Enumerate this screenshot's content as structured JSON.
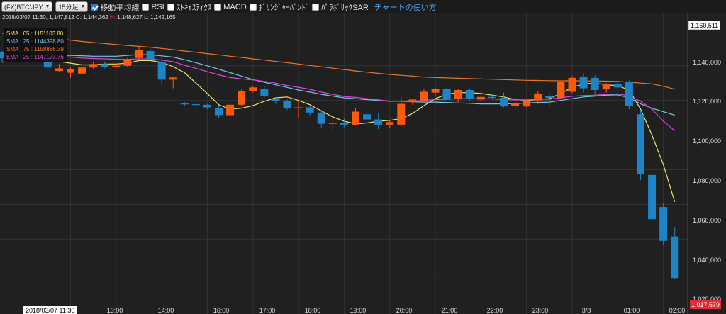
{
  "toolbar": {
    "symbol": "(FX)BTC/JPY",
    "interval": "15分足",
    "checks": [
      {
        "label": "移動平均線",
        "checked": true
      },
      {
        "label": "RSI",
        "checked": false
      },
      {
        "label": "ｽﾄｷｬｽﾃｨｸｽ",
        "checked": false
      },
      {
        "label": "MACD",
        "checked": false
      },
      {
        "label": "ﾎﾞﾘﾝｼﾞｬｰﾊﾞﾝﾄﾞ",
        "checked": false
      },
      {
        "label": "ﾊﾟﾗﾎﾞﾘｯｸSAR",
        "checked": false
      }
    ],
    "help_link": "チャートの使い方"
  },
  "info": {
    "datetime": "2018/03/07 11:30",
    "close_label": "C:",
    "close": "1,144,362",
    "high_label": "H:",
    "high": "1,148,627",
    "low_label": "L:",
    "low": "1,142,165",
    "first": "1,147,812"
  },
  "legend": [
    {
      "name": "SMA : 05",
      "value": "1151103.80",
      "color": "#f0e46a"
    },
    {
      "name": "SMA : 25",
      "value": "1144398.80",
      "color": "#6ec6e8"
    },
    {
      "name": "SMA : 75",
      "value": "1158886.39",
      "color": "#e8742c"
    },
    {
      "name": "EMA : 25",
      "value": "1147173.76",
      "color": "#dd44dd"
    }
  ],
  "colors": {
    "up": "#ff5a0a",
    "down": "#1e84c8",
    "background": "#202020",
    "grid": "#333333"
  },
  "price_marker": "1,160,511",
  "last_price": "1,017,579",
  "time_marker": "2018/03/07 11:30",
  "x_labels": [
    "13:00",
    "14:00",
    "16:00",
    "17:00",
    "18:00",
    "19:00",
    "20:00",
    "21:00",
    "22:00",
    "23:00",
    "3/8",
    "01:00",
    "02:00"
  ],
  "chart_data": {
    "type": "candlestick",
    "y_ticks": [
      1140000,
      1120000,
      1100000,
      1080000,
      1060000,
      1040000,
      1020000
    ],
    "y_tick_labels": [
      "1,140,000",
      "1,120,000",
      "1,100,000",
      "1,080,000",
      "1,060,000",
      "1,040,000",
      "1,020,000"
    ],
    "ylim": [
      1015000,
      1163000
    ],
    "x_ticks": [
      {
        "label": "13:00",
        "index": 6
      },
      {
        "label": "14:00",
        "index": 10
      },
      {
        "label": "16:00",
        "index": 18
      },
      {
        "label": "17:00",
        "index": 22
      },
      {
        "label": "18:00",
        "index": 26
      },
      {
        "label": "19:00",
        "index": 30
      },
      {
        "label": "20:00",
        "index": 34
      },
      {
        "label": "21:00",
        "index": 38
      },
      {
        "label": "22:00",
        "index": 42
      },
      {
        "label": "23:00",
        "index": 46
      },
      {
        "label": "3/8",
        "index": 50
      },
      {
        "label": "01:00",
        "index": 54
      },
      {
        "label": "02:00",
        "index": 58
      }
    ],
    "candles": [
      {
        "t": "11:30",
        "o": 1147812,
        "h": 1148627,
        "l": 1142165,
        "c": 1144362
      },
      {
        "t": "11:45",
        "o": 1146000,
        "h": 1148500,
        "l": 1143000,
        "c": 1145500
      },
      {
        "t": "12:00",
        "o": 1145500,
        "h": 1147500,
        "l": 1143500,
        "c": 1145000
      },
      {
        "t": "12:15",
        "o": 1145000,
        "h": 1147000,
        "l": 1143500,
        "c": 1145600
      },
      {
        "t": "12:30",
        "o": 1145600,
        "h": 1149000,
        "l": 1138000,
        "c": 1139000
      },
      {
        "t": "12:45",
        "o": 1137000,
        "h": 1141000,
        "l": 1136500,
        "c": 1138500
      },
      {
        "t": "13:00",
        "o": 1136000,
        "h": 1139500,
        "l": 1133000,
        "c": 1138000
      },
      {
        "t": "13:15",
        "o": 1135500,
        "h": 1139500,
        "l": 1135000,
        "c": 1139000
      },
      {
        "t": "13:30",
        "o": 1139000,
        "h": 1142500,
        "l": 1138000,
        "c": 1141000
      },
      {
        "t": "13:45",
        "o": 1141000,
        "h": 1142500,
        "l": 1138500,
        "c": 1139500
      },
      {
        "t": "14:00",
        "o": 1139500,
        "h": 1141500,
        "l": 1138500,
        "c": 1140000
      },
      {
        "t": "14:15",
        "o": 1140000,
        "h": 1144500,
        "l": 1139500,
        "c": 1143800
      },
      {
        "t": "14:30",
        "o": 1144500,
        "h": 1150500,
        "l": 1143500,
        "c": 1149000
      },
      {
        "t": "14:45",
        "o": 1148500,
        "h": 1149500,
        "l": 1143500,
        "c": 1144000
      },
      {
        "t": "15:00",
        "o": 1142000,
        "h": 1145000,
        "l": 1129000,
        "c": 1132000
      },
      {
        "t": "15:15",
        "o": 1132000,
        "h": 1133500,
        "l": 1127000,
        "c": 1133200
      },
      {
        "t": "15:30",
        "o": 1118500,
        "h": 1119000,
        "l": 1117000,
        "c": 1117700
      },
      {
        "t": "15:45",
        "o": 1117800,
        "h": 1118500,
        "l": 1116000,
        "c": 1117600
      },
      {
        "t": "16:00",
        "o": 1117500,
        "h": 1118000,
        "l": 1115000,
        "c": 1116000
      },
      {
        "t": "16:15",
        "o": 1115500,
        "h": 1117000,
        "l": 1110000,
        "c": 1111500
      },
      {
        "t": "16:30",
        "o": 1111500,
        "h": 1118500,
        "l": 1111000,
        "c": 1117500
      },
      {
        "t": "16:45",
        "o": 1117500,
        "h": 1126500,
        "l": 1116500,
        "c": 1125500
      },
      {
        "t": "17:00",
        "o": 1125500,
        "h": 1128500,
        "l": 1124500,
        "c": 1127500
      },
      {
        "t": "17:15",
        "o": 1126500,
        "h": 1128000,
        "l": 1121500,
        "c": 1122500
      },
      {
        "t": "17:30",
        "o": 1121000,
        "h": 1122000,
        "l": 1118000,
        "c": 1119500
      },
      {
        "t": "17:45",
        "o": 1119500,
        "h": 1120500,
        "l": 1114500,
        "c": 1115500
      },
      {
        "t": "18:00",
        "o": 1115500,
        "h": 1119500,
        "l": 1109500,
        "c": 1116000
      },
      {
        "t": "18:15",
        "o": 1116000,
        "h": 1117000,
        "l": 1111500,
        "c": 1113000
      },
      {
        "t": "18:30",
        "o": 1113000,
        "h": 1114500,
        "l": 1104000,
        "c": 1106500
      },
      {
        "t": "18:45",
        "o": 1106500,
        "h": 1109500,
        "l": 1102500,
        "c": 1107000
      },
      {
        "t": "19:00",
        "o": 1107000,
        "h": 1109500,
        "l": 1104500,
        "c": 1106000
      },
      {
        "t": "19:15",
        "o": 1106000,
        "h": 1115500,
        "l": 1105500,
        "c": 1113500
      },
      {
        "t": "19:30",
        "o": 1112000,
        "h": 1113000,
        "l": 1108500,
        "c": 1109000
      },
      {
        "t": "19:45",
        "o": 1109000,
        "h": 1113000,
        "l": 1103500,
        "c": 1106000
      },
      {
        "t": "20:00",
        "o": 1106000,
        "h": 1108500,
        "l": 1104000,
        "c": 1107500
      },
      {
        "t": "20:15",
        "o": 1106000,
        "h": 1122000,
        "l": 1105000,
        "c": 1118000
      },
      {
        "t": "20:30",
        "o": 1119000,
        "h": 1121000,
        "l": 1117500,
        "c": 1120500
      },
      {
        "t": "20:45",
        "o": 1120000,
        "h": 1126500,
        "l": 1119000,
        "c": 1125000
      },
      {
        "t": "21:00",
        "o": 1124500,
        "h": 1127500,
        "l": 1122000,
        "c": 1126500
      },
      {
        "t": "21:15",
        "o": 1126500,
        "h": 1127500,
        "l": 1120000,
        "c": 1121000
      },
      {
        "t": "21:30",
        "o": 1121000,
        "h": 1126500,
        "l": 1119000,
        "c": 1126000
      },
      {
        "t": "21:45",
        "o": 1126000,
        "h": 1127000,
        "l": 1119500,
        "c": 1121000
      },
      {
        "t": "22:00",
        "o": 1120500,
        "h": 1123500,
        "l": 1119000,
        "c": 1122000
      },
      {
        "t": "22:15",
        "o": 1122000,
        "h": 1124000,
        "l": 1120500,
        "c": 1121500
      },
      {
        "t": "22:30",
        "o": 1121500,
        "h": 1124500,
        "l": 1116000,
        "c": 1116500
      },
      {
        "t": "22:45",
        "o": 1117000,
        "h": 1119000,
        "l": 1115000,
        "c": 1118500
      },
      {
        "t": "23:00",
        "o": 1116500,
        "h": 1120500,
        "l": 1116000,
        "c": 1120000
      },
      {
        "t": "23:15",
        "o": 1120000,
        "h": 1125500,
        "l": 1118000,
        "c": 1124000
      },
      {
        "t": "23:30",
        "o": 1122500,
        "h": 1124000,
        "l": 1117000,
        "c": 1121500
      },
      {
        "t": "23:45",
        "o": 1121500,
        "h": 1131500,
        "l": 1120500,
        "c": 1130500
      },
      {
        "t": "00:00",
        "o": 1125000,
        "h": 1134000,
        "l": 1124000,
        "c": 1133000
      },
      {
        "t": "00:15",
        "o": 1133500,
        "h": 1135500,
        "l": 1124500,
        "c": 1127000
      },
      {
        "t": "00:30",
        "o": 1133000,
        "h": 1134500,
        "l": 1122500,
        "c": 1126000
      },
      {
        "t": "00:45",
        "o": 1126500,
        "h": 1130000,
        "l": 1124500,
        "c": 1129500
      },
      {
        "t": "01:00",
        "o": 1129500,
        "h": 1131500,
        "l": 1125500,
        "c": 1127500
      },
      {
        "t": "01:15",
        "o": 1130500,
        "h": 1131500,
        "l": 1115000,
        "c": 1117000
      },
      {
        "t": "01:30",
        "o": 1112000,
        "h": 1114500,
        "l": 1074000,
        "c": 1077500
      },
      {
        "t": "01:45",
        "o": 1077000,
        "h": 1079000,
        "l": 1050500,
        "c": 1051500
      },
      {
        "t": "02:00",
        "o": 1058500,
        "h": 1061000,
        "l": 1036500,
        "c": 1039000
      },
      {
        "t": "02:15",
        "o": 1041500,
        "h": 1047000,
        "l": 1017000,
        "c": 1017579
      }
    ],
    "series": [
      {
        "name": "SMA : 05",
        "color": "#f0e46a",
        "x_start": 0,
        "values": [
          1147500,
          1146800,
          1145000,
          1144200,
          1144000,
          1142500,
          1141500,
          1140500,
          1140500,
          1141000,
          1141000,
          1141500,
          1143000,
          1143000,
          1142000,
          1139500,
          1136000,
          1130000,
          1124000,
          1117500,
          1115000,
          1115500,
          1117000,
          1119500,
          1121500,
          1122000,
          1120000,
          1117500,
          1114000,
          1110500,
          1108000,
          1106500,
          1107000,
          1108000,
          1108500,
          1109500,
          1112500,
          1117000,
          1121000,
          1123500,
          1124500,
          1124500,
          1124000,
          1123000,
          1122000,
          1120500,
          1120000,
          1120500,
          1121000,
          1124000,
          1127500,
          1129500,
          1130000,
          1129000,
          1128500,
          1126000,
          1115000,
          1100000,
          1083000,
          1061500
        ]
      },
      {
        "name": "SMA : 25",
        "color": "#6ec6e8",
        "x_start": 0,
        "values": [
          1142000,
          1143200,
          1144200,
          1145200,
          1145800,
          1146000,
          1146000,
          1145800,
          1145500,
          1145500,
          1145500,
          1146000,
          1146500,
          1146300,
          1145700,
          1145000,
          1143500,
          1141800,
          1140000,
          1138000,
          1136000,
          1134000,
          1132000,
          1130500,
          1129000,
          1127500,
          1126000,
          1124800,
          1123500,
          1122500,
          1121500,
          1121000,
          1120500,
          1120000,
          1119500,
          1119500,
          1119200,
          1119000,
          1119000,
          1118800,
          1118500,
          1118300,
          1118000,
          1118000,
          1118000,
          1118200,
          1118500,
          1118800,
          1119000,
          1120000,
          1121000,
          1122000,
          1122500,
          1123000,
          1123200,
          1121500,
          1118000,
          1115500,
          1113500,
          1111500
        ]
      },
      {
        "name": "SMA : 75",
        "color": "#e8742c",
        "x_start": 0,
        "values": [
          1158800,
          1158200,
          1157600,
          1157000,
          1156300,
          1155500,
          1154800,
          1154000,
          1153400,
          1152800,
          1152200,
          1151700,
          1151200,
          1150700,
          1150000,
          1149300,
          1148500,
          1147800,
          1147000,
          1146300,
          1145500,
          1144800,
          1144000,
          1143300,
          1142500,
          1141800,
          1141000,
          1140200,
          1139400,
          1138600,
          1137800,
          1137000,
          1136300,
          1135600,
          1135000,
          1134500,
          1134000,
          1133500,
          1133200,
          1133000,
          1132800,
          1132600,
          1132400,
          1132200,
          1132000,
          1131800,
          1131600,
          1131500,
          1131400,
          1131300,
          1131300,
          1131300,
          1131200,
          1131100,
          1131000,
          1130500,
          1130000,
          1129500,
          1128200,
          1126500
        ]
      },
      {
        "name": "EMA : 25",
        "color": "#dd44dd",
        "x_start": 0,
        "values": [
          1147000,
          1146900,
          1146700,
          1146500,
          1146000,
          1145500,
          1145000,
          1144500,
          1144200,
          1144000,
          1143800,
          1143700,
          1144000,
          1144000,
          1143300,
          1142300,
          1140300,
          1138500,
          1136600,
          1134800,
          1133200,
          1132400,
          1131900,
          1131000,
          1130000,
          1128600,
          1127600,
          1126400,
          1124800,
          1123500,
          1122300,
          1121800,
          1121000,
          1120300,
          1119600,
          1119500,
          1119600,
          1120000,
          1120500,
          1120600,
          1121000,
          1121000,
          1121000,
          1120900,
          1120500,
          1120300,
          1120300,
          1120600,
          1120700,
          1121500,
          1122400,
          1122800,
          1123000,
          1123500,
          1123800,
          1122600,
          1119500,
          1115000,
          1108000,
          1102500
        ]
      }
    ]
  }
}
